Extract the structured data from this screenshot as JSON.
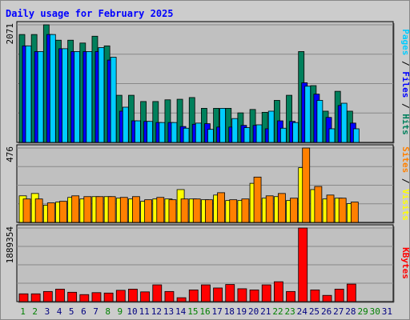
{
  "chart_data": {
    "type": "bar",
    "title": "Daily usage for February 2025",
    "days": [
      "1",
      "2",
      "3",
      "4",
      "5",
      "6",
      "7",
      "8",
      "9",
      "10",
      "11",
      "12",
      "13",
      "14",
      "15",
      "16",
      "17",
      "18",
      "19",
      "20",
      "21",
      "22",
      "23",
      "24",
      "25",
      "26",
      "27",
      "28",
      "29",
      "30",
      "31"
    ],
    "weekend_days": [
      "1",
      "2",
      "8",
      "9",
      "15",
      "16",
      "22",
      "23",
      "29",
      "30"
    ],
    "bar_days": 28,
    "panels": [
      {
        "id": "pages-files-hits",
        "max_label": "2071",
        "ymax": 2071,
        "series": [
          {
            "name": "Hits",
            "color": "#00805c",
            "values": [
              1900,
              1900,
              2071,
              1800,
              1800,
              1750,
              1870,
              1700,
              830,
              830,
              720,
              720,
              750,
              760,
              790,
              600,
              600,
              600,
              520,
              580,
              530,
              740,
              830,
              1600,
              1000,
              550,
              900,
              550
            ]
          },
          {
            "name": "Files",
            "color": "#0000ff",
            "values": [
              1700,
              1600,
              1900,
              1650,
              1600,
              1600,
              1600,
              1450,
              550,
              380,
              370,
              350,
              350,
              280,
              320,
              330,
              270,
              270,
              300,
              300,
              240,
              380,
              370,
              1050,
              850,
              440,
              650,
              340
            ]
          },
          {
            "name": "Pages",
            "color": "#00ccff",
            "values": [
              1700,
              1600,
              1900,
              1650,
              1600,
              1600,
              1670,
              1500,
              620,
              380,
              370,
              350,
              350,
              250,
              340,
              230,
              600,
              420,
              260,
              310,
              550,
              250,
              350,
              990,
              740,
              240,
              690,
              240
            ]
          }
        ]
      },
      {
        "id": "visits-sites",
        "max_label": "476",
        "ymax": 476,
        "series": [
          {
            "name": "Visits",
            "color": "#ffff00",
            "values": [
              170,
              185,
              110,
              130,
              160,
              150,
              165,
              165,
              155,
              150,
              135,
              150,
              150,
              210,
              150,
              145,
              175,
              140,
              140,
              250,
              155,
              165,
              140,
              350,
              210,
              150,
              155,
              120
            ]
          },
          {
            "name": "Sites",
            "color": "#ff8000",
            "values": [
              150,
              150,
              125,
              135,
              170,
              165,
              165,
              165,
              160,
              165,
              145,
              160,
              145,
              150,
              150,
              145,
              190,
              145,
              150,
              290,
              170,
              185,
              155,
              476,
              230,
              175,
              155,
              130
            ]
          }
        ]
      },
      {
        "id": "kbytes",
        "max_label": "1889354",
        "ymax": 1889354,
        "series": [
          {
            "name": "KBytes",
            "color": "#ff0000",
            "values": [
              200000,
              200000,
              260000,
              320000,
              240000,
              180000,
              230000,
              220000,
              290000,
              320000,
              250000,
              430000,
              260000,
              100000,
              300000,
              430000,
              350000,
              440000,
              330000,
              300000,
              430000,
              510000,
              260000,
              1889354,
              300000,
              160000,
              320000,
              450000
            ]
          }
        ]
      }
    ]
  },
  "colors": {
    "background": "#cccccc",
    "plot_background": "#c0c0c0",
    "title_color": "#0000ff",
    "weekday_label": "#000080",
    "weekend_label": "#008000",
    "grid": "#888888"
  }
}
